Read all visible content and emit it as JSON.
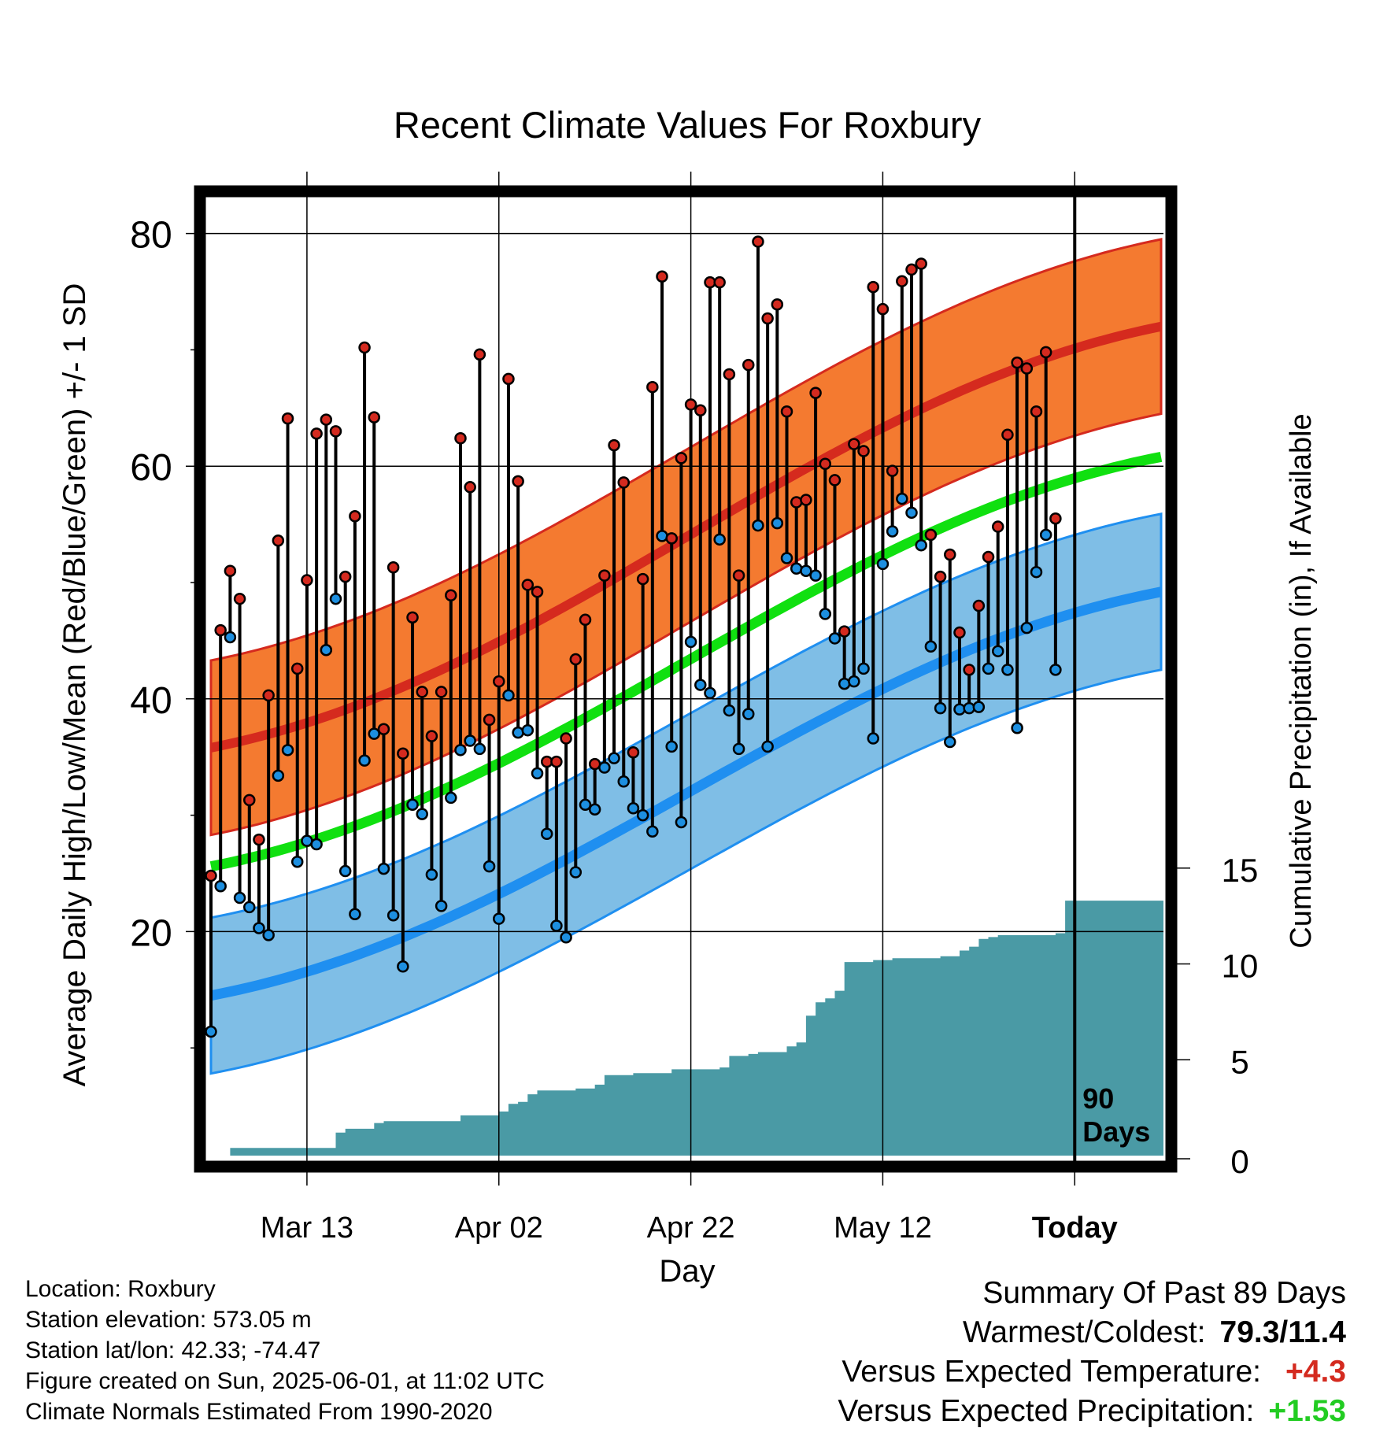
{
  "chart_data": {
    "type": "line",
    "title": "Recent Climate Values For Roxbury",
    "xlabel": "Day",
    "ylabel": "Average Daily High/Low/Mean (Red/Blue/Green) +/- 1 SD",
    "y2label": "Cumulative Precipitation (in), If Available",
    "ylim": [
      0,
      85
    ],
    "y_ticks": [
      "20",
      "40",
      "60",
      "80"
    ],
    "y2lim": [
      0,
      20
    ],
    "y2_ticks": [
      "0",
      "5",
      "10",
      "15"
    ],
    "x_ticks": [
      "Mar 13",
      "Apr 02",
      "Apr 22",
      "May 12",
      "Today"
    ],
    "x_tick_day": [
      10,
      30,
      50,
      70,
      90
    ],
    "day_range": [
      0,
      99
    ],
    "today_marker": {
      "day": 90,
      "label_line1": "90",
      "label_line2": "Days"
    },
    "daily_high": [
      24.8,
      45.9,
      51.0,
      48.6,
      31.3,
      27.9,
      40.3,
      53.6,
      64.1,
      42.6,
      50.2,
      62.8,
      64.0,
      63.0,
      50.5,
      55.7,
      70.2,
      64.2,
      37.4,
      51.3,
      35.3,
      47.0,
      40.6,
      36.8,
      40.6,
      48.9,
      62.4,
      58.2,
      69.6,
      38.2,
      41.5,
      67.5,
      58.7,
      49.8,
      49.2,
      34.6,
      34.6,
      36.6,
      43.4,
      46.8,
      34.4,
      50.6,
      61.8,
      58.6,
      35.4,
      50.3,
      66.8,
      76.3,
      53.8,
      60.7,
      65.3,
      64.8,
      75.8,
      75.8,
      67.9,
      50.6,
      68.7,
      79.3,
      72.7,
      73.9,
      64.7,
      56.9,
      57.1,
      66.3,
      60.2,
      58.8,
      45.8,
      61.9,
      61.3,
      75.4,
      73.5,
      59.6,
      75.9,
      76.9,
      77.4,
      54.1,
      50.5,
      52.4,
      45.7,
      42.5,
      48.0,
      52.2,
      54.8,
      62.7,
      68.9,
      68.4,
      64.7,
      69.8,
      55.5
    ],
    "daily_low": [
      11.4,
      23.9,
      45.3,
      22.9,
      22.1,
      20.3,
      19.7,
      33.4,
      35.6,
      26.0,
      27.8,
      27.5,
      44.2,
      48.6,
      25.2,
      21.5,
      34.7,
      37.0,
      25.4,
      21.4,
      17.0,
      30.9,
      30.1,
      24.9,
      22.2,
      31.5,
      35.6,
      36.4,
      35.7,
      25.6,
      21.1,
      40.3,
      37.1,
      37.3,
      33.6,
      28.4,
      20.5,
      19.5,
      25.1,
      30.9,
      30.5,
      34.1,
      34.9,
      32.9,
      30.6,
      30.0,
      28.6,
      54.0,
      35.9,
      29.4,
      44.9,
      41.2,
      40.5,
      53.7,
      39.0,
      35.7,
      38.7,
      54.9,
      35.9,
      55.1,
      52.1,
      51.2,
      51.0,
      50.6,
      47.3,
      45.2,
      41.3,
      41.5,
      42.6,
      36.6,
      51.6,
      54.4,
      57.2,
      56.0,
      53.2,
      44.5,
      39.2,
      36.3,
      39.1,
      39.2,
      39.3,
      42.6,
      44.1,
      42.5,
      37.5,
      46.1,
      50.9,
      54.1,
      42.5
    ],
    "normal_high_mean": [
      35.8,
      72.0
    ],
    "normal_high_sd": 7.5,
    "normal_low_mean": [
      14.5,
      49.2
    ],
    "normal_low_sd": 6.7,
    "normal_mean": [
      25.6,
      60.8
    ],
    "precip_cumulative": [
      0,
      0,
      0.4,
      0.4,
      0.4,
      0.4,
      0.4,
      0.4,
      0.4,
      0.4,
      0.4,
      0.4,
      0.4,
      1.2,
      1.4,
      1.4,
      1.4,
      1.7,
      1.8,
      1.8,
      1.8,
      1.8,
      1.8,
      1.8,
      1.8,
      1.8,
      2.1,
      2.1,
      2.1,
      2.1,
      2.3,
      2.7,
      2.8,
      3.2,
      3.4,
      3.4,
      3.4,
      3.4,
      3.5,
      3.5,
      3.7,
      4.2,
      4.2,
      4.2,
      4.3,
      4.3,
      4.3,
      4.3,
      4.5,
      4.5,
      4.5,
      4.5,
      4.5,
      4.6,
      5.2,
      5.2,
      5.3,
      5.4,
      5.4,
      5.4,
      5.7,
      5.9,
      7.3,
      8.0,
      8.2,
      8.6,
      10.1,
      10.1,
      10.1,
      10.2,
      10.2,
      10.3,
      10.3,
      10.3,
      10.3,
      10.3,
      10.4,
      10.4,
      10.7,
      10.9,
      11.3,
      11.4,
      11.5,
      11.5,
      11.5,
      11.5,
      11.5,
      11.5,
      11.6,
      13.3,
      13.3,
      13.3,
      13.3,
      13.3,
      13.3,
      13.3,
      13.3,
      13.3,
      13.3,
      13.3
    ],
    "colors": {
      "high_band": "#f47a30",
      "high_line": "#d52a1e",
      "low_band": "#7fbee6",
      "low_line": "#1f8ff0",
      "mean_line": "#10e010",
      "precip": "#4a9aa5",
      "high_point": "#d42a1f",
      "low_point": "#1d8fe0"
    },
    "grid": true
  },
  "info": {
    "location": "Location: Roxbury",
    "elevation": "Station elevation: 573.05 m",
    "latlon": "Station lat/lon: 42.33; -74.47",
    "created": "Figure created on Sun, 2025-06-01, at 11:02 UTC",
    "normals": "Climate Normals Estimated From 1990-2020"
  },
  "summary": {
    "title": "Summary Of Past 89 Days",
    "extremes_label": "Warmest/Coldest:",
    "extremes_value": "79.3/11.4",
    "temp_label": "Versus Expected Temperature:",
    "temp_value": "+4.3",
    "temp_color": "#d42a1f",
    "precip_label": "Versus Expected Precipitation:",
    "precip_value": "+1.53",
    "precip_color": "#22cc22"
  }
}
